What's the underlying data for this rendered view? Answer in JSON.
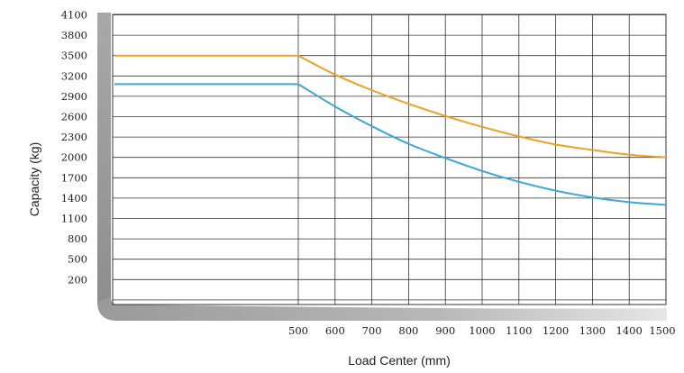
{
  "chart_data": {
    "type": "line",
    "xlabel": "Load Center (mm)",
    "ylabel": "Capacity (kg)",
    "x_ticks": [
      500,
      600,
      700,
      800,
      900,
      1000,
      1100,
      1200,
      1300,
      1400,
      1500
    ],
    "y_ticks": [
      200,
      500,
      800,
      1100,
      1400,
      1700,
      2000,
      2300,
      2600,
      2900,
      3200,
      3500,
      3800,
      4100
    ],
    "xlim": [
      500,
      1500
    ],
    "ylim": [
      200,
      4100
    ],
    "grid": true,
    "series": [
      {
        "color": "#f0a020",
        "x": [
          500,
          600,
          700,
          800,
          900,
          1000,
          1100,
          1200,
          1300,
          1400,
          1500
        ],
        "y": [
          3500,
          3220,
          2990,
          2790,
          2610,
          2450,
          2310,
          2190,
          2110,
          2040,
          2000
        ]
      },
      {
        "color": "#3aa8d8",
        "x": [
          500,
          600,
          700,
          800,
          900,
          1000,
          1100,
          1200,
          1300,
          1400,
          1500
        ],
        "y": [
          3080,
          2750,
          2460,
          2200,
          1990,
          1800,
          1640,
          1510,
          1410,
          1340,
          1300
        ]
      }
    ]
  }
}
